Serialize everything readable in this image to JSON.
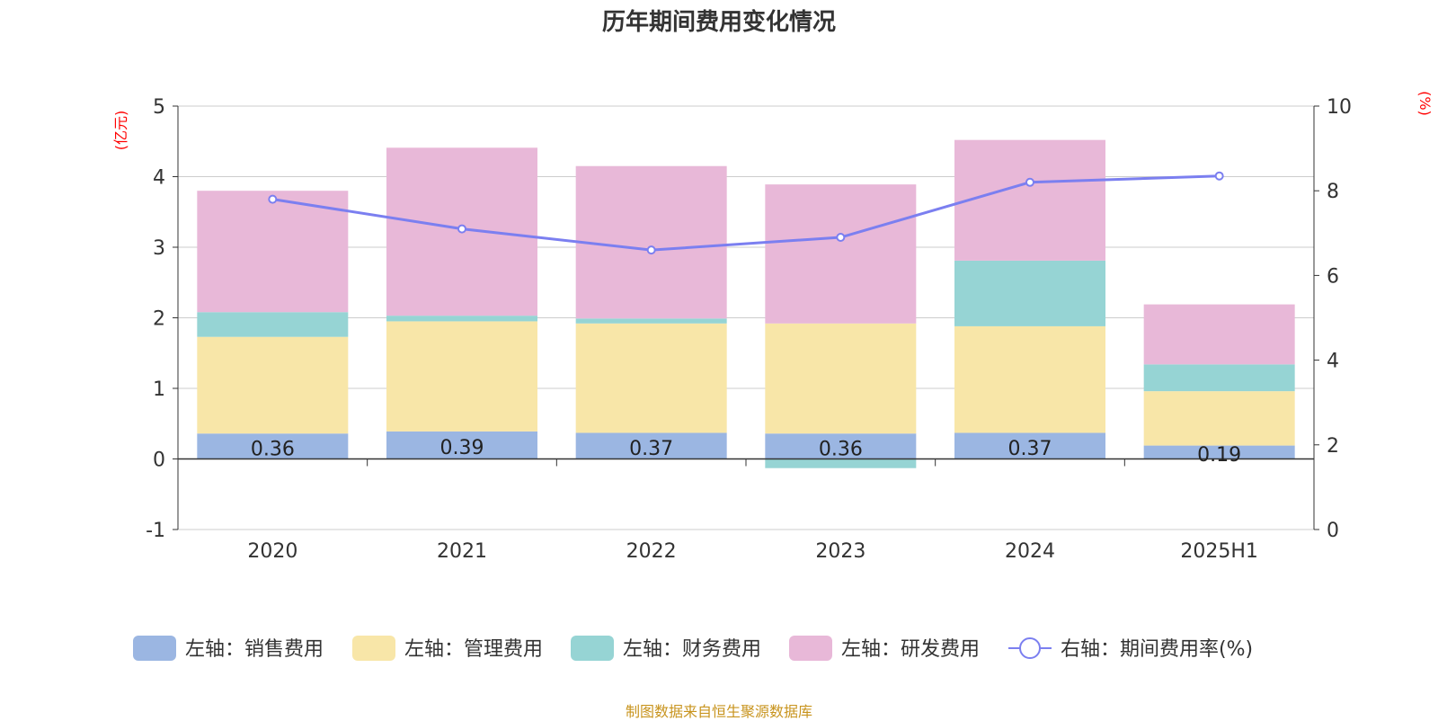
{
  "chart_data": {
    "type": "bar",
    "title": "历年期间费用变化情况",
    "categories": [
      "2020",
      "2021",
      "2022",
      "2023",
      "2024",
      "2025H1"
    ],
    "left_axis": {
      "unit_label": "(亿元)",
      "ylim": [
        -1,
        5
      ],
      "ticks": [
        "5",
        "4",
        "3",
        "2",
        "1",
        "0",
        "-1"
      ]
    },
    "right_axis": {
      "unit_label": "(%)",
      "ylim": [
        0,
        10
      ],
      "ticks": [
        "10",
        "8",
        "6",
        "4",
        "2",
        "0"
      ]
    },
    "series": [
      {
        "name": "左轴：销售费用",
        "axis": "left",
        "kind": "bar",
        "color": "#9bb6e2",
        "values": [
          0.36,
          0.39,
          0.37,
          0.36,
          0.37,
          0.19
        ],
        "labels": [
          "0.36",
          "0.39",
          "0.37",
          "0.36",
          "0.37",
          "0.19"
        ]
      },
      {
        "name": "左轴：管理费用",
        "axis": "left",
        "kind": "bar",
        "color": "#f8e6a8",
        "values": [
          1.37,
          1.56,
          1.55,
          1.56,
          1.51,
          0.77
        ]
      },
      {
        "name": "左轴：财务费用",
        "axis": "left",
        "kind": "bar",
        "color": "#96d4d4",
        "values": [
          0.35,
          0.08,
          0.07,
          -0.13,
          0.93,
          0.38
        ]
      },
      {
        "name": "左轴：研发费用",
        "axis": "left",
        "kind": "bar",
        "color": "#e8b8d8",
        "values": [
          1.72,
          2.38,
          2.16,
          1.97,
          1.71,
          0.85
        ]
      },
      {
        "name": "右轴：期间费用率(%)",
        "axis": "right",
        "kind": "line",
        "color": "#7b7ff0",
        "values": [
          7.8,
          7.1,
          6.6,
          6.9,
          8.2,
          8.35
        ]
      }
    ],
    "grid": true,
    "legend_position": "bottom"
  },
  "footer": "制图数据来自恒生聚源数据库"
}
